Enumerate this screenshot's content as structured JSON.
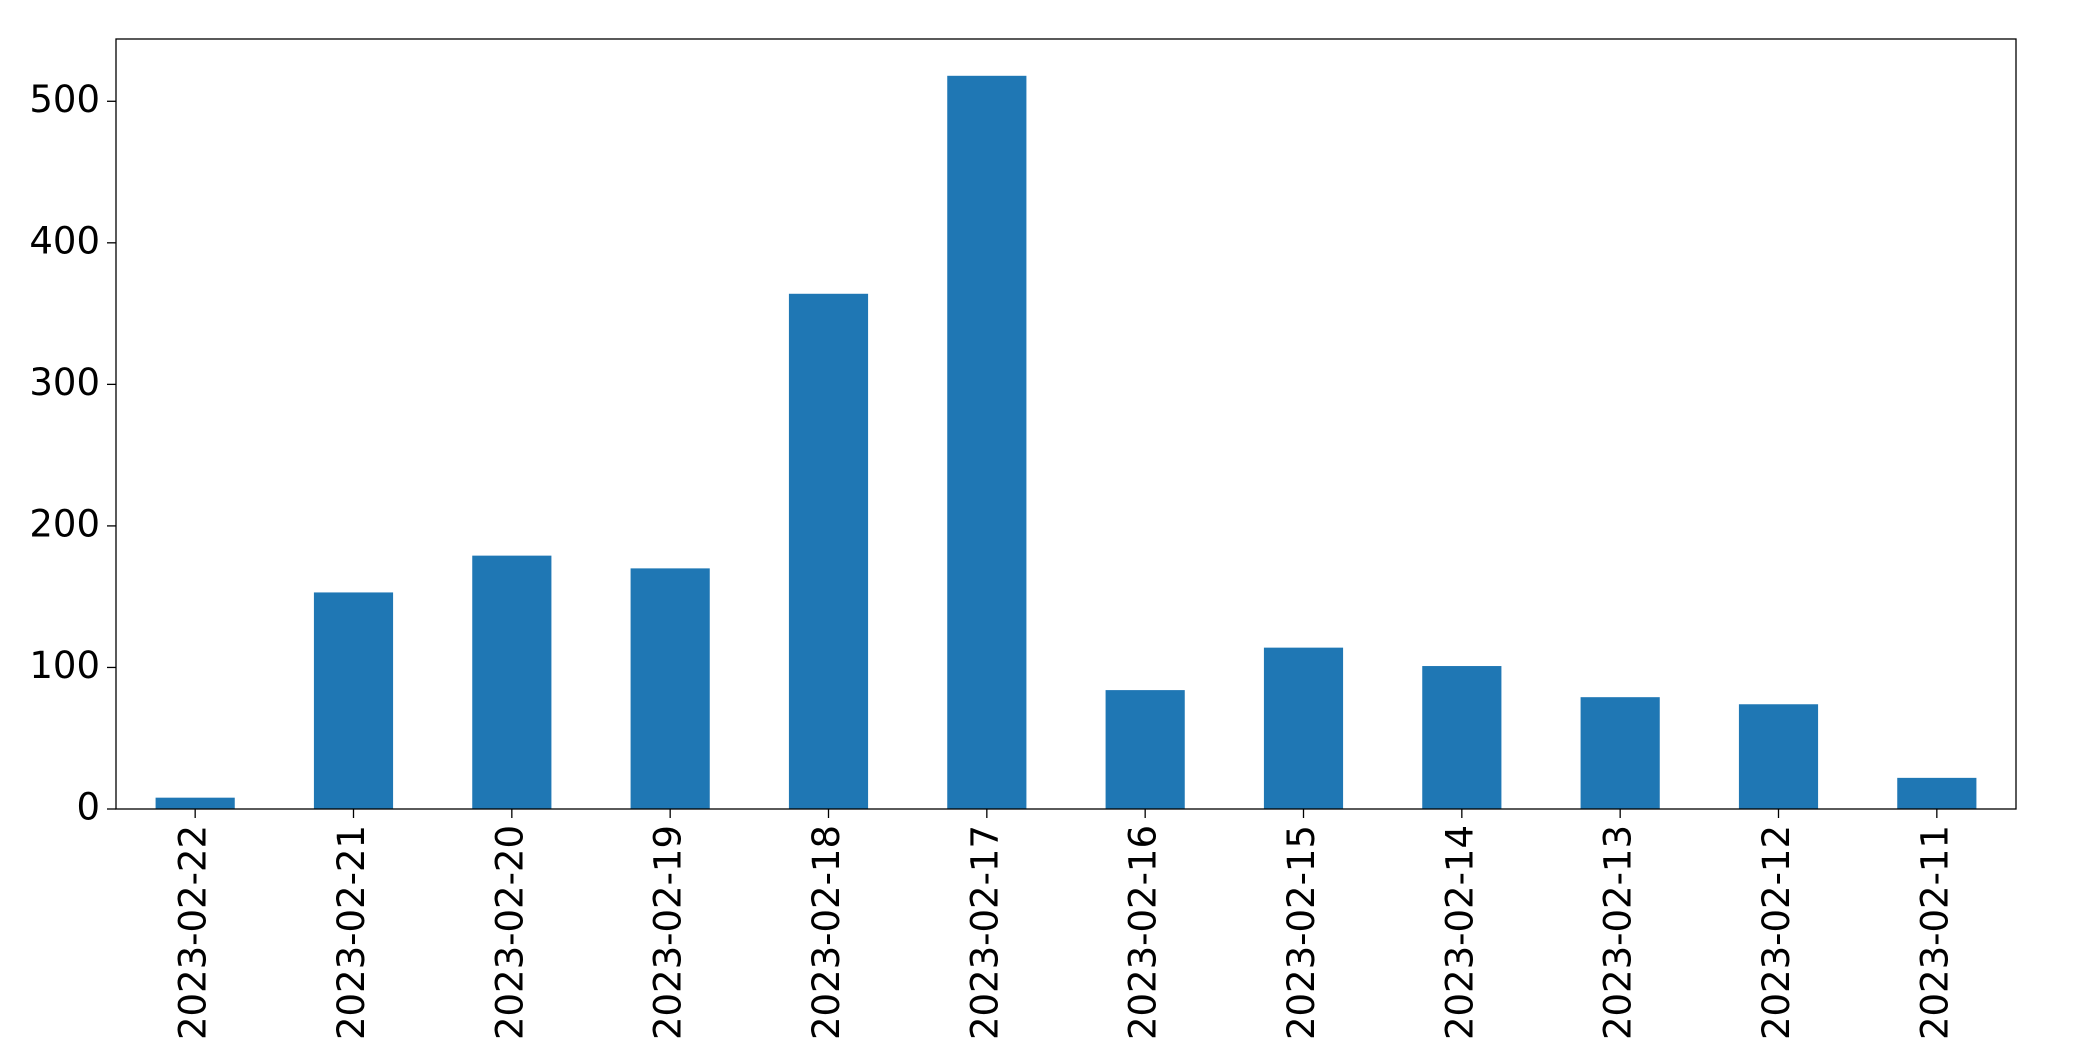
{
  "chart_data": {
    "type": "bar",
    "categories": [
      "2023-02-22",
      "2023-02-21",
      "2023-02-20",
      "2023-02-19",
      "2023-02-18",
      "2023-02-17",
      "2023-02-16",
      "2023-02-15",
      "2023-02-14",
      "2023-02-13",
      "2023-02-12",
      "2023-02-11"
    ],
    "values": [
      8,
      153,
      179,
      170,
      364,
      518,
      84,
      114,
      101,
      79,
      74,
      22
    ],
    "color": "#1f77b4",
    "ylim": [
      0,
      544
    ],
    "yticks": [
      0,
      100,
      200,
      300,
      400,
      500
    ],
    "grid": false
  }
}
